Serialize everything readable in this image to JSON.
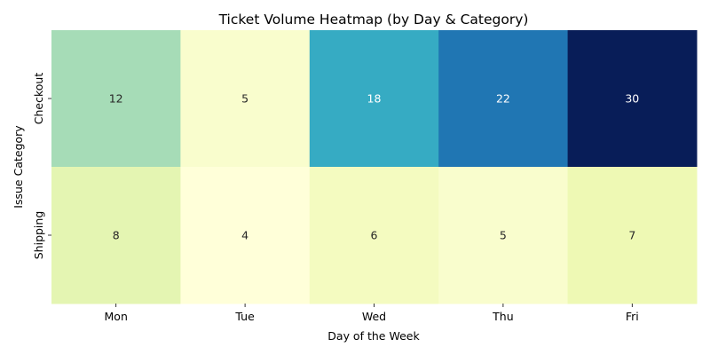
{
  "chart_data": {
    "type": "heatmap",
    "title": "Ticket Volume Heatmap (by Day & Category)",
    "xlabel": "Day of the Week",
    "ylabel": "Issue Category",
    "x_categories": [
      "Mon",
      "Tue",
      "Wed",
      "Thu",
      "Fri"
    ],
    "y_categories": [
      "Checkout",
      "Shipping"
    ],
    "values": [
      [
        12,
        5,
        18,
        22,
        30
      ],
      [
        8,
        4,
        6,
        5,
        7
      ]
    ],
    "colormap": "YlGnBu",
    "value_range": [
      4,
      30
    ],
    "annotations": true,
    "colorbar": false
  }
}
